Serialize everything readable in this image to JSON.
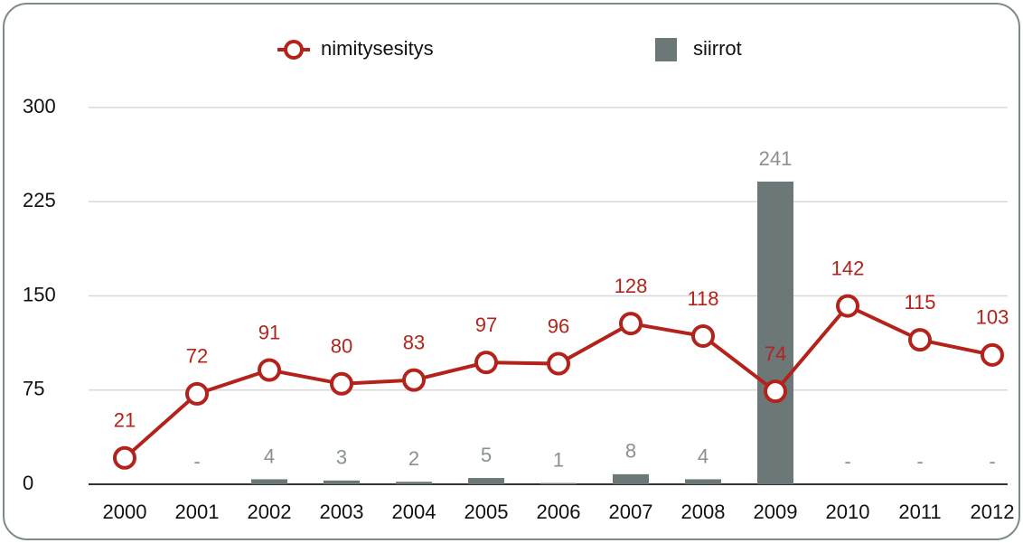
{
  "chart_data": {
    "type": "combo",
    "categories": [
      "2000",
      "2001",
      "2002",
      "2003",
      "2004",
      "2005",
      "2006",
      "2007",
      "2008",
      "2009",
      "2010",
      "2011",
      "2012"
    ],
    "series": [
      {
        "name": "nimitysesitys",
        "type": "line",
        "color": "#b3231b",
        "values": [
          21,
          72,
          91,
          80,
          83,
          97,
          96,
          128,
          118,
          74,
          142,
          115,
          103
        ]
      },
      {
        "name": "siirrot",
        "type": "bar",
        "color": "#6c7878",
        "values": [
          null,
          null,
          4,
          3,
          2,
          5,
          1,
          8,
          4,
          241,
          null,
          null,
          null
        ],
        "value_labels": [
          "-",
          "-",
          null,
          null,
          null,
          null,
          null,
          null,
          null,
          null,
          "-",
          "-",
          "-"
        ]
      }
    ],
    "ylim": [
      0,
      300
    ],
    "yticks": [
      0,
      75,
      150,
      225,
      300
    ],
    "grid": true,
    "legend": "top"
  }
}
